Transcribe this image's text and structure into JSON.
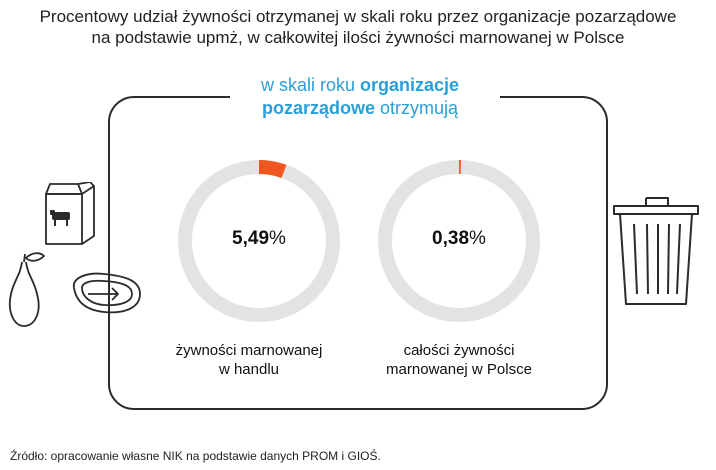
{
  "title": {
    "line1": "Procentowy udział żywności otrzymanej w skali roku przez organizacje pozarządowe",
    "line2": "na podstawie upmż, w całkowitej ilości żywności marnowanej w Polsce"
  },
  "subtitle": {
    "prefix": "w skali roku ",
    "bold1": "organizacje",
    "bold2": "pozarządowe",
    "suffix": " otrzymują"
  },
  "chart_data": {
    "type": "pie",
    "donuts": [
      {
        "value": 5.49,
        "number": "5,49",
        "unit": "%",
        "caption_line1": "żywności marnowanej",
        "caption_line2": "w handlu"
      },
      {
        "value": 0.38,
        "number": "0,38",
        "unit": "%",
        "caption_line1": "całości żywności",
        "caption_line2": "marnowanej w Polsce"
      }
    ],
    "max": 100
  },
  "colors": {
    "highlight": "#f0561d",
    "ring": "#e3e3e3",
    "accent": "#2a9fd8",
    "outline": "#2b2b2b"
  },
  "icons": {
    "left": [
      "milk-carton-icon",
      "pear-icon",
      "steak-icon"
    ],
    "right": [
      "trash-bin-icon"
    ]
  },
  "source": "Źródło: opracowanie własne NIK na podstawie danych PROM i GIOŚ."
}
